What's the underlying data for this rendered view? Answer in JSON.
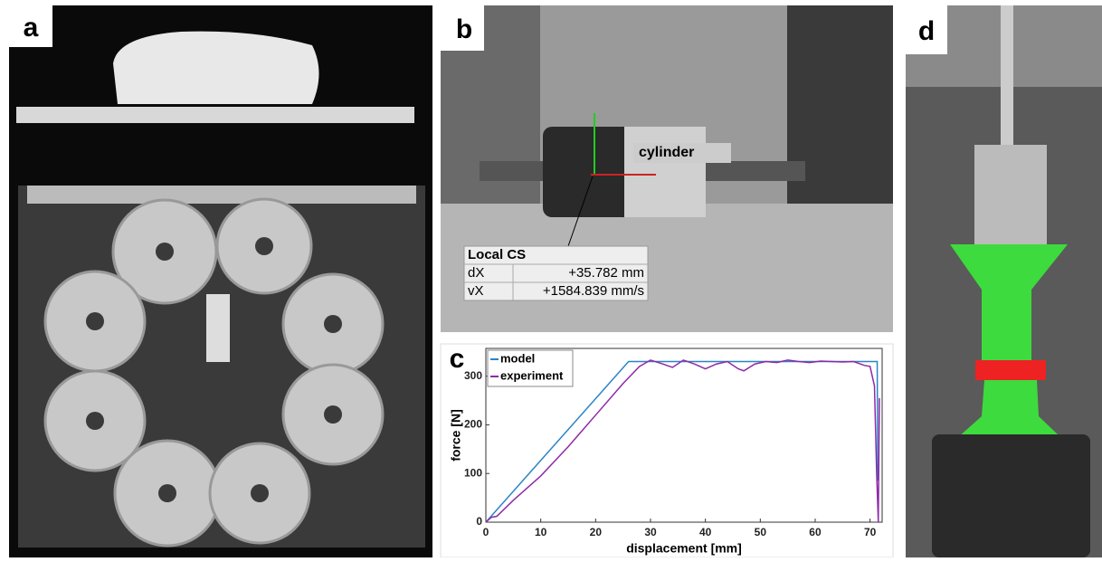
{
  "panels": {
    "a": "a",
    "b": "b",
    "c": "c",
    "d": "d"
  },
  "overlay_b": {
    "object": "cylinder",
    "table_title": "Local CS",
    "rows": [
      [
        "dX",
        "+35.782 mm"
      ],
      [
        "vX",
        "+1584.839 mm/s"
      ]
    ]
  },
  "chart_data": {
    "type": "line",
    "xlabel": "displacement [mm]",
    "ylabel": "force [N]",
    "xlim": [
      0,
      72.2
    ],
    "ylim": [
      0,
      357
    ],
    "xticks": [
      0,
      10,
      20,
      30,
      40,
      50,
      60,
      70
    ],
    "yticks": [
      0,
      100,
      200,
      300
    ],
    "legend": "upper left",
    "series": [
      {
        "name": "model",
        "color": "#2b84c6",
        "x": [
          0,
          26,
          71.3,
          71.4
        ],
        "values": [
          0,
          330,
          330,
          85
        ]
      },
      {
        "name": "experiment",
        "color": "#8e2aa6",
        "x": [
          0,
          1,
          2,
          5,
          10,
          15,
          20,
          25,
          28,
          30,
          32,
          34,
          36,
          38,
          40,
          42,
          44,
          46,
          47,
          49,
          51,
          53,
          55,
          57,
          59,
          61,
          63,
          65,
          67,
          69,
          70,
          70.8,
          71.2,
          71.5,
          71.7
        ],
        "values": [
          0,
          10,
          12,
          45,
          95,
          155,
          220,
          285,
          320,
          333,
          326,
          318,
          333,
          325,
          315,
          325,
          330,
          315,
          311,
          325,
          330,
          328,
          333,
          330,
          328,
          331,
          330,
          329,
          330,
          322,
          320,
          280,
          100,
          0,
          255
        ]
      }
    ]
  }
}
